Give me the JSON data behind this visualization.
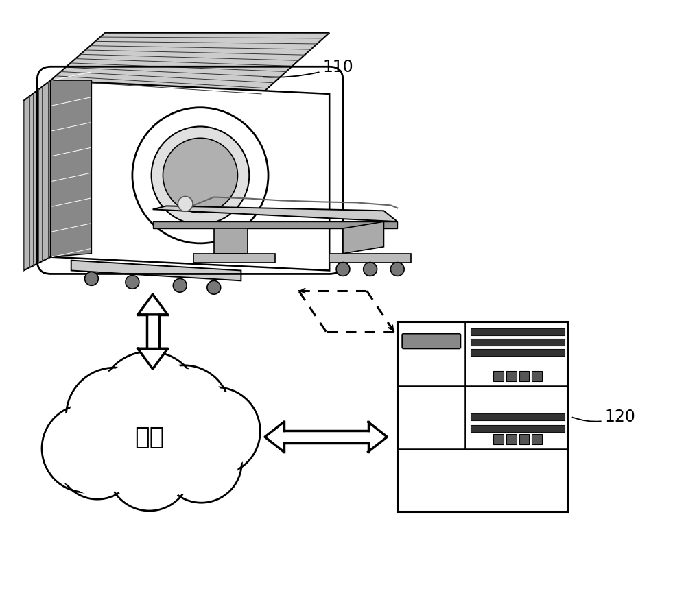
{
  "background_color": "#ffffff",
  "label_110": "110",
  "label_120": "120",
  "cloud_text": "网络",
  "cloud_text_fontsize": 26,
  "label_fontsize": 17,
  "fig_width": 10.0,
  "fig_height": 8.95,
  "line_color": "#000000",
  "dark_fill": "#555555",
  "mid_fill": "#999999",
  "light_fill": "#dddddd"
}
